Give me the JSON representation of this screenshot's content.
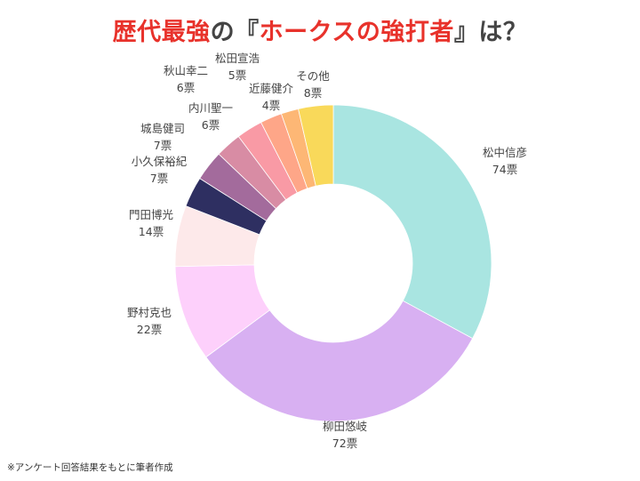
{
  "title": {
    "part1": "歴代最強",
    "part2": "の『",
    "part3": "ホークスの強打者",
    "part4": "』は？"
  },
  "note": "※アンケート回答結果をもとに筆者作成",
  "chart_data": {
    "type": "pie",
    "subtype": "donut",
    "unit": "票",
    "slices": [
      {
        "name": "松中信彦",
        "value": 74,
        "value_label": "74票",
        "color": "#a9e5e1"
      },
      {
        "name": "柳田悠岐",
        "value": 72,
        "value_label": "72票",
        "color": "#d8b0f2"
      },
      {
        "name": "野村克也",
        "value": 22,
        "value_label": "22票",
        "color": "#fdd0fb"
      },
      {
        "name": "門田博光",
        "value": 14,
        "value_label": "14票",
        "color": "#fde9ea"
      },
      {
        "name": "小久保裕紀",
        "value": 7,
        "value_label": "7票",
        "color": "#2e2f61"
      },
      {
        "name": "城島健司",
        "value": 7,
        "value_label": "7票",
        "color": "#a36b9c"
      },
      {
        "name": "内川聖一",
        "value": 6,
        "value_label": "6票",
        "color": "#d88ca4"
      },
      {
        "name": "秋山幸二",
        "value": 6,
        "value_label": "6票",
        "color": "#f99aa5"
      },
      {
        "name": "松田宣浩",
        "value": 5,
        "value_label": "5票",
        "color": "#fea688"
      },
      {
        "name": "近藤健介",
        "value": 4,
        "value_label": "4票",
        "color": "#fdb775"
      },
      {
        "name": "その他",
        "value": 8,
        "value_label": "8票",
        "color": "#f9d95a"
      }
    ]
  }
}
